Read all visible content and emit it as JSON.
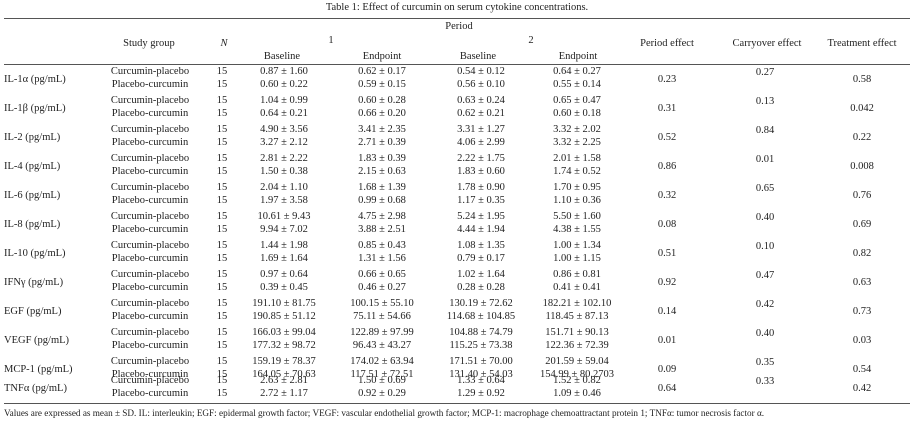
{
  "caption": "Table 1: Effect of curcumin on serum cytokine concentrations.",
  "headers": {
    "study_group": "Study group",
    "n": "N",
    "period": "Period",
    "period1": "1",
    "period2": "2",
    "baseline": "Baseline",
    "endpoint": "Endpoint",
    "period_effect": "Period effect",
    "carryover_effect": "Carryover effect",
    "treatment_effect": "Treatment effect"
  },
  "rows": [
    {
      "cytokine": "IL-1α (pg/mL)",
      "period_effect": "0.23",
      "carryover_effect": "0.27",
      "treatment_effect": "0.58",
      "groups": [
        {
          "name": "Curcumin-placebo",
          "n": "15",
          "p1_baseline": "0.87 ± 1.60",
          "p1_endpoint": "0.62 ± 0.17",
          "p2_baseline": "0.54 ± 0.12",
          "p2_endpoint": "0.64 ± 0.27"
        },
        {
          "name": "Placebo-curcumin",
          "n": "15",
          "p1_baseline": "0.60 ± 0.22",
          "p1_endpoint": "0.59 ± 0.15",
          "p2_baseline": "0.56 ± 0.10",
          "p2_endpoint": "0.55 ± 0.14"
        }
      ]
    },
    {
      "cytokine": "IL-1β (pg/mL)",
      "period_effect": "0.31",
      "carryover_effect": "0.13",
      "treatment_effect": "0.042",
      "groups": [
        {
          "name": "Curcumin-placebo",
          "n": "15",
          "p1_baseline": "1.04 ± 0.99",
          "p1_endpoint": "0.60 ± 0.28",
          "p2_baseline": "0.63 ± 0.24",
          "p2_endpoint": "0.65 ± 0.47"
        },
        {
          "name": "Placebo-curcumin",
          "n": "15",
          "p1_baseline": "0.64 ± 0.21",
          "p1_endpoint": "0.66 ± 0.20",
          "p2_baseline": "0.62 ± 0.21",
          "p2_endpoint": "0.60 ± 0.18"
        }
      ]
    },
    {
      "cytokine": "IL-2 (pg/mL)",
      "period_effect": "0.52",
      "carryover_effect": "0.84",
      "treatment_effect": "0.22",
      "groups": [
        {
          "name": "Curcumin-placebo",
          "n": "15",
          "p1_baseline": "4.90 ± 3.56",
          "p1_endpoint": "3.41 ± 2.35",
          "p2_baseline": "3.31 ± 1.27",
          "p2_endpoint": "3.32 ± 2.02"
        },
        {
          "name": "Placebo-curcumin",
          "n": "15",
          "p1_baseline": "3.27 ± 2.12",
          "p1_endpoint": "2.71 ± 0.39",
          "p2_baseline": "4.06 ± 2.99",
          "p2_endpoint": "3.32 ± 2.25"
        }
      ]
    },
    {
      "cytokine": "IL-4 (pg/mL)",
      "period_effect": "0.86",
      "carryover_effect": "0.01",
      "treatment_effect": "0.008",
      "groups": [
        {
          "name": "Curcumin-placebo",
          "n": "15",
          "p1_baseline": "2.81 ± 2.22",
          "p1_endpoint": "1.83 ± 0.39",
          "p2_baseline": "2.22 ± 1.75",
          "p2_endpoint": "2.01 ± 1.58"
        },
        {
          "name": "Placebo-curcumin",
          "n": "15",
          "p1_baseline": "1.50 ± 0.38",
          "p1_endpoint": "2.15 ± 0.63",
          "p2_baseline": "1.83 ± 0.60",
          "p2_endpoint": "1.74 ± 0.52"
        }
      ]
    },
    {
      "cytokine": "IL-6 (pg/mL)",
      "period_effect": "0.32",
      "carryover_effect": "0.65",
      "treatment_effect": "0.76",
      "groups": [
        {
          "name": "Curcumin-placebo",
          "n": "15",
          "p1_baseline": "2.04 ± 1.10",
          "p1_endpoint": "1.68 ± 1.39",
          "p2_baseline": "1.78 ± 0.90",
          "p2_endpoint": "1.70 ± 0.95"
        },
        {
          "name": "Placebo-curcumin",
          "n": "15",
          "p1_baseline": "1.97 ± 3.58",
          "p1_endpoint": "0.99 ± 0.68",
          "p2_baseline": "1.17 ± 0.35",
          "p2_endpoint": "1.10 ± 0.36"
        }
      ]
    },
    {
      "cytokine": "IL-8 (pg/mL)",
      "period_effect": "0.08",
      "carryover_effect": "0.40",
      "treatment_effect": "0.69",
      "groups": [
        {
          "name": "Curcumin-placebo",
          "n": "15",
          "p1_baseline": "10.61 ± 9.43",
          "p1_endpoint": "4.75 ± 2.98",
          "p2_baseline": "5.24 ± 1.95",
          "p2_endpoint": "5.50 ± 1.60"
        },
        {
          "name": "Placebo-curcumin",
          "n": "15",
          "p1_baseline": "9.94 ± 7.02",
          "p1_endpoint": "3.88 ± 2.51",
          "p2_baseline": "4.44 ± 1.94",
          "p2_endpoint": "4.38 ± 1.55"
        }
      ]
    },
    {
      "cytokine": "IL-10 (pg/mL)",
      "period_effect": "0.51",
      "carryover_effect": "0.10",
      "treatment_effect": "0.82",
      "groups": [
        {
          "name": "Curcumin-placebo",
          "n": "15",
          "p1_baseline": "1.44 ± 1.98",
          "p1_endpoint": "0.85 ± 0.43",
          "p2_baseline": "1.08 ± 1.35",
          "p2_endpoint": "1.00 ± 1.34"
        },
        {
          "name": "Placebo-curcumin",
          "n": "15",
          "p1_baseline": "1.69 ± 1.64",
          "p1_endpoint": "1.31 ± 1.56",
          "p2_baseline": "0.79 ± 0.17",
          "p2_endpoint": "1.00 ± 1.15"
        }
      ]
    },
    {
      "cytokine": "IFNγ (pg/mL)",
      "period_effect": "0.92",
      "carryover_effect": "0.47",
      "treatment_effect": "0.63",
      "groups": [
        {
          "name": "Curcumin-placebo",
          "n": "15",
          "p1_baseline": "0.97 ± 0.64",
          "p1_endpoint": "0.66 ± 0.65",
          "p2_baseline": "1.02 ± 1.64",
          "p2_endpoint": "0.86 ± 0.81"
        },
        {
          "name": "Placebo-curcumin",
          "n": "15",
          "p1_baseline": "0.39 ± 0.45",
          "p1_endpoint": "0.46 ± 0.27",
          "p2_baseline": "0.28 ± 0.28",
          "p2_endpoint": "0.41 ± 0.41"
        }
      ]
    },
    {
      "cytokine": "EGF (pg/mL)",
      "period_effect": "0.14",
      "carryover_effect": "0.42",
      "treatment_effect": "0.73",
      "groups": [
        {
          "name": "Curcumin-placebo",
          "n": "15",
          "p1_baseline": "191.10 ± 81.75",
          "p1_endpoint": "100.15 ± 55.10",
          "p2_baseline": "130.19 ± 72.62",
          "p2_endpoint": "182.21 ± 102.10"
        },
        {
          "name": "Placebo-curcumin",
          "n": "15",
          "p1_baseline": "190.85 ± 51.12",
          "p1_endpoint": "75.11 ± 54.66",
          "p2_baseline": "114.68 ± 104.85",
          "p2_endpoint": "118.45 ± 87.13"
        }
      ]
    },
    {
      "cytokine": "VEGF (pg/mL)",
      "period_effect": "0.01",
      "carryover_effect": "0.40",
      "treatment_effect": "0.03",
      "groups": [
        {
          "name": "Curcumin-placebo",
          "n": "15",
          "p1_baseline": "166.03 ± 99.04",
          "p1_endpoint": "122.89 ± 97.99",
          "p2_baseline": "104.88 ± 74.79",
          "p2_endpoint": "151.71 ± 90.13"
        },
        {
          "name": "Placebo-curcumin",
          "n": "15",
          "p1_baseline": "177.32 ± 98.72",
          "p1_endpoint": "96.43 ± 43.27",
          "p2_baseline": "115.25 ± 73.38",
          "p2_endpoint": "122.36 ± 72.39"
        }
      ]
    },
    {
      "cytokine": "MCP-1 (pg/mL)",
      "period_effect": "0.09",
      "carryover_effect": "0.35",
      "treatment_effect": "0.54",
      "groups": [
        {
          "name": "Curcumin-placebo",
          "n": "15",
          "p1_baseline": "159.19 ± 78.37",
          "p1_endpoint": "174.02 ± 63.94",
          "p2_baseline": "171.51 ± 70.00",
          "p2_endpoint": "201.59 ± 59.04"
        },
        {
          "name": "Placebo-curcumin",
          "n": "15",
          "p1_baseline": "164.05 ± 70.63",
          "p1_endpoint": "117.51 ± 72.51",
          "p2_baseline": "131.40 ± 54.03",
          "p2_endpoint": "154.99 ± 80.2703"
        }
      ]
    },
    {
      "cytokine": "TNFα (pg/mL)",
      "period_effect": "0.64",
      "carryover_effect": "0.33",
      "treatment_effect": "0.42",
      "groups": [
        {
          "name": "Curcumin-placebo",
          "n": "15",
          "p1_baseline": "2.63 ± 2.81",
          "p1_endpoint": "1.50 ± 0.69",
          "p2_baseline": "1.33 ± 0.64",
          "p2_endpoint": "1.52 ± 0.82"
        },
        {
          "name": "Placebo-curcumin",
          "n": "15",
          "p1_baseline": "2.72 ± 1.17",
          "p1_endpoint": "0.92 ± 0.29",
          "p2_baseline": "1.29 ± 0.92",
          "p2_endpoint": "1.09 ± 0.46"
        }
      ]
    }
  ],
  "footnote": "Values are expressed as mean ± SD. IL: interleukin; EGF: epidermal growth factor; VEGF: vascular endothelial growth factor; MCP-1: macrophage chemoattractant protein 1; TNFα: tumor necrosis factor α."
}
